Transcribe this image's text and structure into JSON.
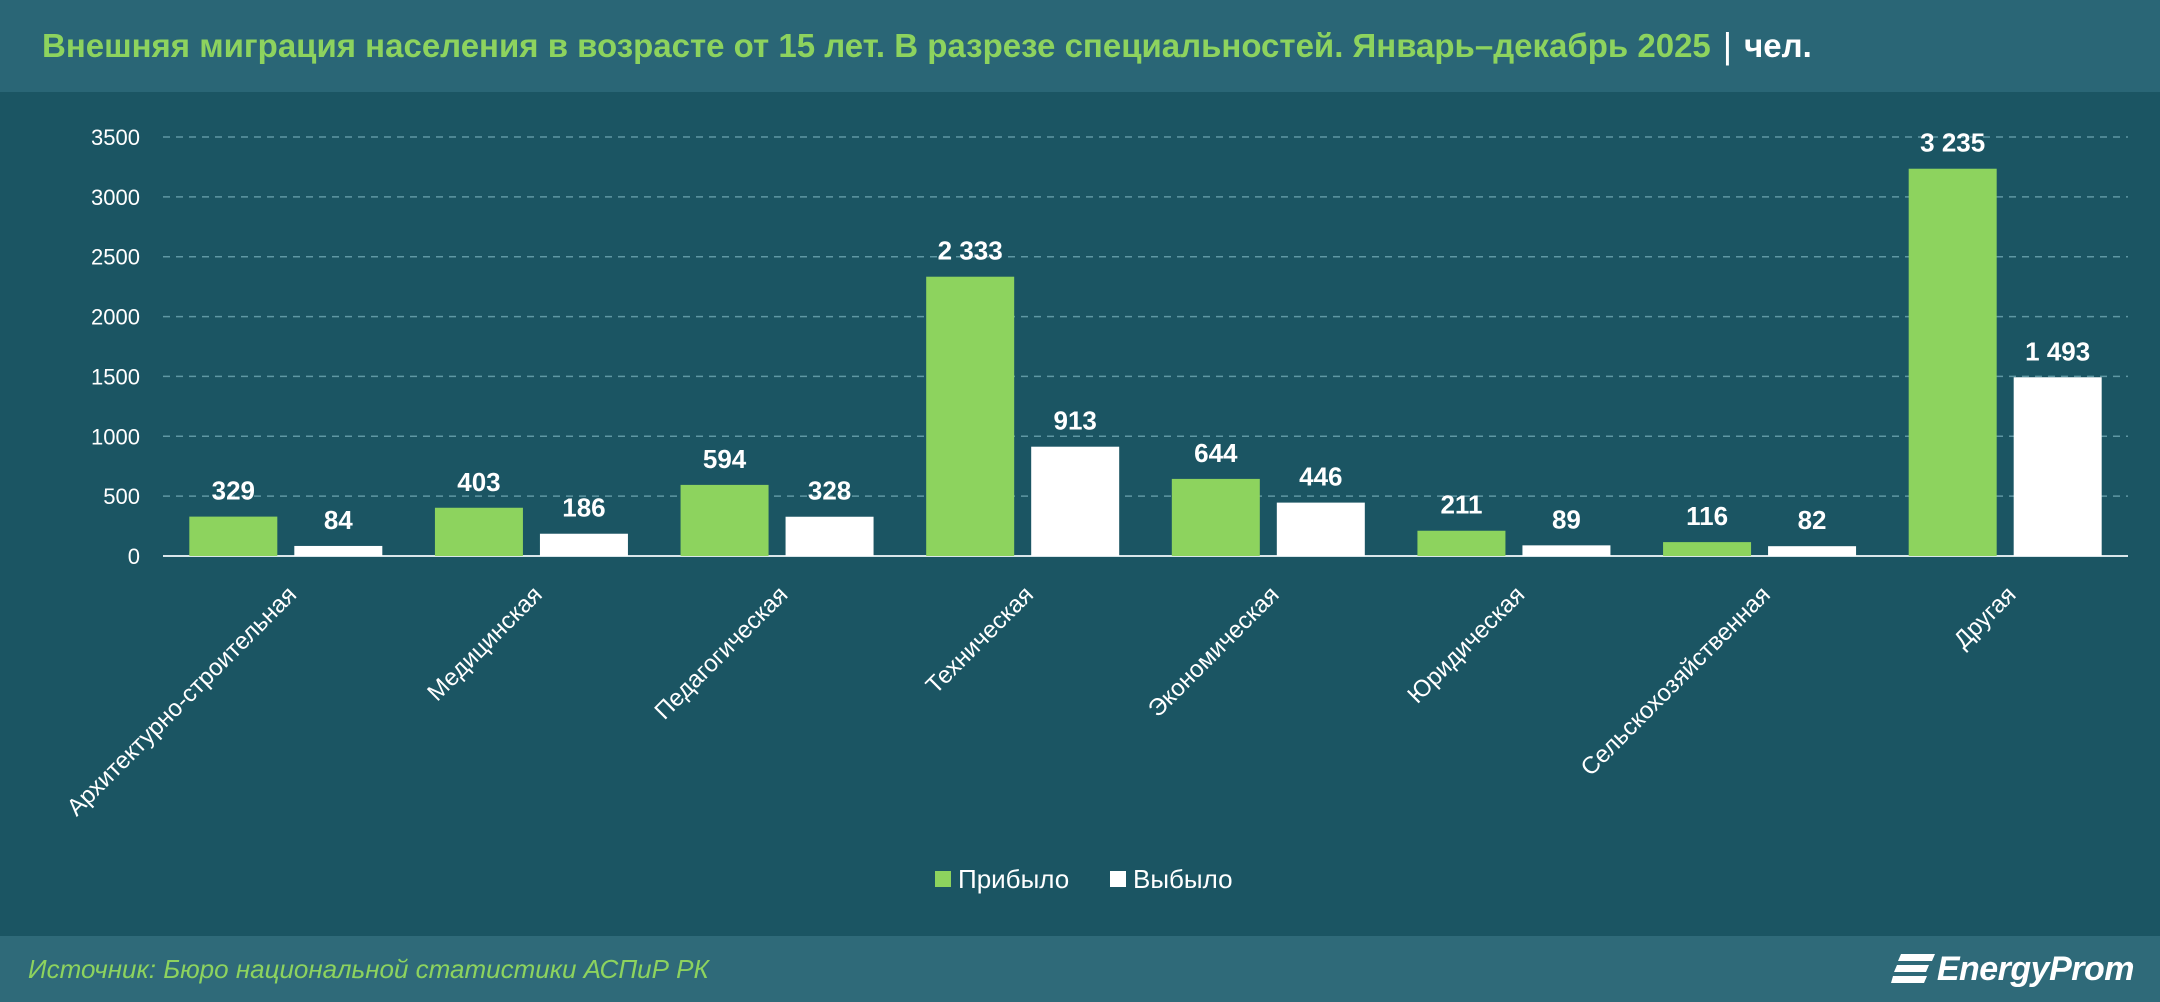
{
  "header": {
    "title": "Внешняя миграция населения в возрасте от 15 лет. В разрезе специальностей. Январь–декабрь 2025",
    "separator": "|",
    "unit": "чел."
  },
  "chart_data": {
    "type": "bar",
    "categories": [
      "Архитектурно-строительная",
      "Медицинская",
      "Педагогическая",
      "Техническая",
      "Экономическая",
      "Юридическая",
      "Сельскохозяйственная",
      "Другая"
    ],
    "series": [
      {
        "name": "Прибыло",
        "color": "#8dd35e",
        "values": [
          329,
          403,
          594,
          2333,
          644,
          211,
          116,
          3235
        ],
        "labels": [
          "329",
          "403",
          "594",
          "2 333",
          "644",
          "211",
          "116",
          "3 235"
        ]
      },
      {
        "name": "Выбыло",
        "color": "#ffffff",
        "values": [
          84,
          186,
          328,
          913,
          446,
          89,
          82,
          1493
        ],
        "labels": [
          "84",
          "186",
          "328",
          "913",
          "446",
          "89",
          "82",
          "1 493"
        ]
      }
    ],
    "ylim": [
      0,
      3500
    ],
    "yticks": [
      0,
      500,
      1000,
      1500,
      2000,
      2500,
      3000,
      3500
    ],
    "grid": true,
    "legend_position": "bottom"
  },
  "footer": {
    "source": "Источник: Бюро национальной статистики АСПиР РК",
    "logo_text": "EnergyProm"
  }
}
